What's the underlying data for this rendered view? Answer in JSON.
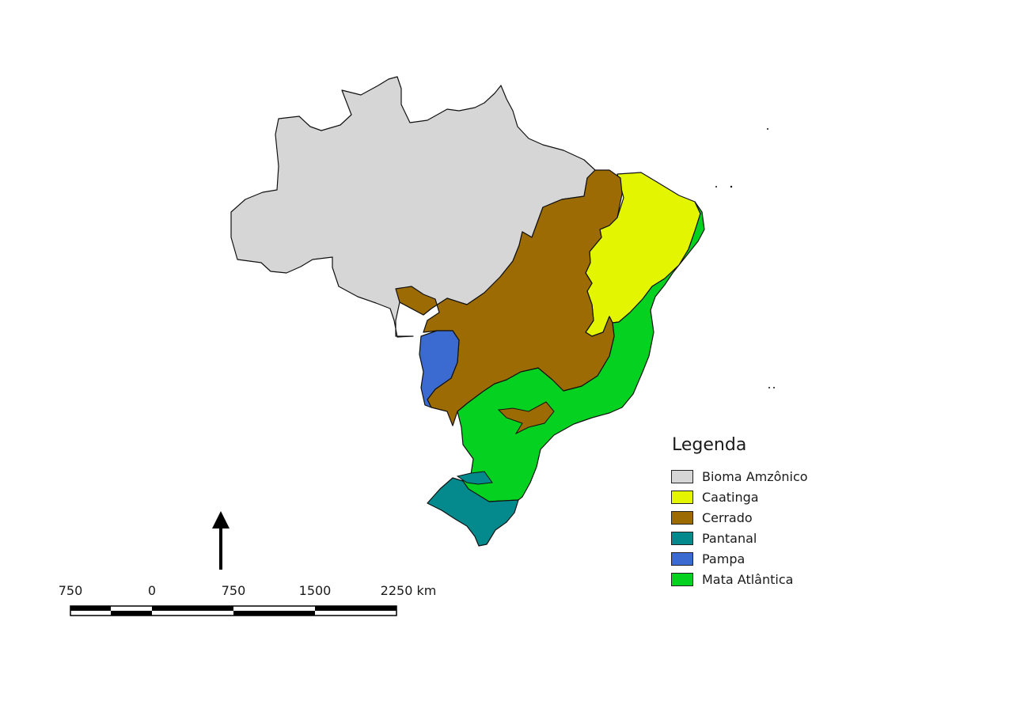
{
  "legend": {
    "title": "Legenda",
    "items": [
      {
        "label": "Bioma Amzônico",
        "color": "#d6d6d6"
      },
      {
        "label": "Caatinga",
        "color": "#e4f500"
      },
      {
        "label": "Cerrado",
        "color": "#9c6b03"
      },
      {
        "label": "Pantanal",
        "color": "#04898c"
      },
      {
        "label": "Pampa",
        "color": "#3b6bd1"
      },
      {
        "label": "Mata Atlântica",
        "color": "#05d120"
      }
    ]
  },
  "scale_bar": {
    "labels": [
      "750",
      "0",
      "750",
      "1500",
      "2250 km"
    ]
  },
  "north_arrow": "north-arrow-icon"
}
